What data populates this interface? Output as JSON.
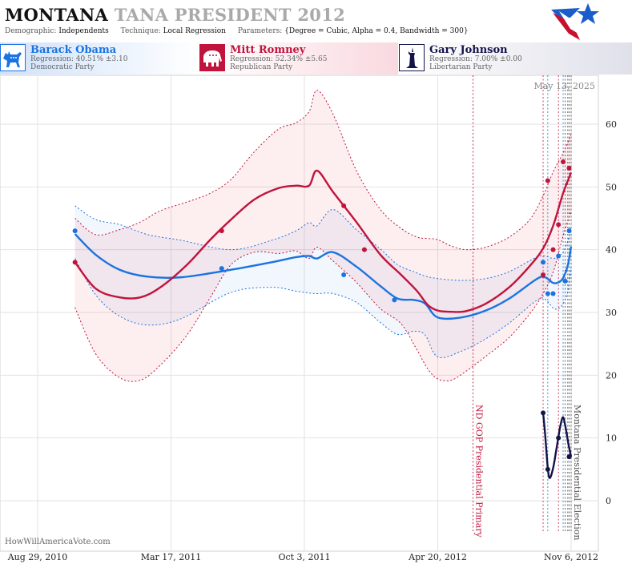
{
  "header": {
    "title_state": "MONTANA",
    "title_rest": "TANA PRESIDENT 2012",
    "demographic_label": "Demographic:",
    "demographic_value": "Independents",
    "technique_label": "Technique:",
    "technique_value": "Local Regression",
    "parameters_label": "Parameters:",
    "parameters_value": "{Degree = Cubic, Alpha = 0.4, Bandwidth = 300}",
    "logo_icon": "star-flag-logo-icon"
  },
  "candidates": [
    {
      "name": "Barack Obama",
      "regression": "Regression: 40.51% ±3.10",
      "party": "Democratic Party",
      "color": "#1a73e0",
      "icon": "donkey-icon"
    },
    {
      "name": "Mitt Romney",
      "regression": "Regression: 52.34% ±5.65",
      "party": "Republican Party",
      "color": "#c0143c",
      "icon": "elephant-icon"
    },
    {
      "name": "Gary Johnson",
      "regression": "Regression: 7.00% ±0.00",
      "party": "Libertarian Party",
      "color": "#14144a",
      "icon": "statue-of-liberty-icon"
    }
  ],
  "chart_data": {
    "type": "line",
    "date_stamp": "May 13, 2025",
    "watermark": "HowWillAmericaVote.com",
    "x_ticks": [
      "Aug 29, 2010",
      "Mar 17, 2011",
      "Oct 3, 2011",
      "Apr 20, 2012",
      "Nov 6, 2012"
    ],
    "y_ticks": [
      0,
      10,
      20,
      30,
      40,
      50,
      60
    ],
    "ylim": [
      -8,
      66
    ],
    "grid": true,
    "annotations": [
      {
        "label": "ND GOP Presidential Primary",
        "date": "2012-06-12",
        "color": "#c0143c"
      },
      {
        "label": "Montana Presidential Election",
        "date": "2012-11-06",
        "color": "#555555"
      }
    ],
    "poll_date_lines": [
      "2012-09-25",
      "2012-10-02",
      "2012-10-18",
      "2012-10-25",
      "2012-10-28",
      "2012-11-01",
      "2012-11-03"
    ],
    "series": [
      {
        "name": "Barack Obama",
        "color": "#1a73e0",
        "trend_x": [
          "2010-10-24",
          "2010-11-24",
          "2010-12-30",
          "2011-02-10",
          "2011-04-01",
          "2011-06-15",
          "2011-08-15",
          "2011-09-20",
          "2011-10-10",
          "2011-10-22",
          "2011-11-15",
          "2011-12-20",
          "2012-01-25",
          "2012-02-20",
          "2012-03-15",
          "2012-04-01",
          "2012-04-20",
          "2012-05-25",
          "2012-07-01",
          "2012-08-05",
          "2012-09-15",
          "2012-09-28",
          "2012-10-10",
          "2012-10-18",
          "2012-10-25",
          "2012-11-01",
          "2012-11-06"
        ],
        "trend_y": [
          42.5,
          39.2,
          36.8,
          35.7,
          35.6,
          36.8,
          38.0,
          38.8,
          39.0,
          38.6,
          39.6,
          37.3,
          34.2,
          32.2,
          32.0,
          31.4,
          29.2,
          29.2,
          30.3,
          32.2,
          35.3,
          35.6,
          34.7,
          34.8,
          35.5,
          37.5,
          40.5
        ],
        "upper_y": [
          47.0,
          44.8,
          44.0,
          42.4,
          41.5,
          40.0,
          41.5,
          43.0,
          44.3,
          43.8,
          46.4,
          43.2,
          40.1,
          37.6,
          36.5,
          35.8,
          35.4,
          35.1,
          35.4,
          36.5,
          38.8,
          39.0,
          38.6,
          39.0,
          39.6,
          41.4,
          43.6
        ],
        "lower_y": [
          38.6,
          32.8,
          29.4,
          28.0,
          29.0,
          33.2,
          34.0,
          33.4,
          33.1,
          33.0,
          33.0,
          31.6,
          28.4,
          26.5,
          27.0,
          26.4,
          22.9,
          23.8,
          25.8,
          28.3,
          31.9,
          32.1,
          30.7,
          30.6,
          31.4,
          33.3,
          37.3
        ],
        "poll_x": [
          "2010-10-24",
          "2011-06-01",
          "2011-12-01",
          "2012-02-15",
          "2012-09-25",
          "2012-10-02",
          "2012-10-10",
          "2012-10-18",
          "2012-10-28",
          "2012-11-03"
        ],
        "poll_y": [
          43,
          37,
          36,
          32,
          38,
          33,
          33,
          39,
          35,
          43
        ]
      },
      {
        "name": "Mitt Romney",
        "color": "#c0143c",
        "trend_x": [
          "2010-10-24",
          "2010-11-24",
          "2010-12-30",
          "2011-01-30",
          "2011-03-01",
          "2011-04-10",
          "2011-05-15",
          "2011-06-15",
          "2011-07-20",
          "2011-08-25",
          "2011-09-20",
          "2011-10-10",
          "2011-10-22",
          "2011-11-15",
          "2011-12-20",
          "2012-01-25",
          "2012-02-25",
          "2012-03-20",
          "2012-04-05",
          "2012-04-20",
          "2012-05-10",
          "2012-06-01",
          "2012-07-01",
          "2012-08-05",
          "2012-09-05",
          "2012-09-25",
          "2012-10-10",
          "2012-10-25",
          "2012-11-06"
        ],
        "trend_y": [
          38.0,
          33.8,
          32.4,
          32.4,
          34.0,
          37.6,
          41.6,
          44.8,
          48.0,
          49.8,
          50.2,
          50.2,
          52.6,
          49.2,
          44.4,
          39.2,
          36.0,
          33.4,
          31.2,
          30.3,
          30.1,
          30.2,
          31.4,
          34.0,
          37.4,
          40.2,
          43.8,
          49.0,
          52.3
        ],
        "upper_y": [
          45.0,
          42.4,
          43.2,
          44.4,
          46.2,
          47.6,
          49.0,
          51.2,
          55.6,
          59.2,
          60.2,
          62.0,
          65.4,
          61.6,
          52.6,
          46.4,
          43.4,
          42.0,
          41.8,
          41.6,
          40.6,
          40.0,
          40.4,
          42.0,
          44.8,
          48.6,
          52.4,
          55.4,
          58.4
        ],
        "lower_y": [
          30.8,
          23.4,
          19.6,
          19.2,
          21.6,
          26.4,
          32.4,
          37.6,
          39.6,
          39.4,
          39.8,
          38.6,
          40.4,
          38.2,
          34.8,
          30.6,
          28.2,
          24.0,
          21.0,
          19.4,
          19.2,
          20.6,
          23.0,
          26.0,
          29.8,
          33.0,
          36.4,
          42.2,
          46.2
        ],
        "poll_x": [
          "2010-10-24",
          "2011-06-01",
          "2011-12-01",
          "2012-01-01",
          "2012-09-25",
          "2012-10-02",
          "2012-10-10",
          "2012-10-18",
          "2012-10-25",
          "2012-11-03"
        ],
        "poll_y": [
          38,
          43,
          47,
          40,
          36,
          51,
          40,
          44,
          54,
          53
        ]
      },
      {
        "name": "Gary Johnson",
        "color": "#14144a",
        "trend_x": [
          "2012-09-25",
          "2012-09-28",
          "2012-10-02",
          "2012-10-05",
          "2012-10-10",
          "2012-10-14",
          "2012-10-18",
          "2012-10-21",
          "2012-10-25",
          "2012-10-29",
          "2012-11-02",
          "2012-11-06"
        ],
        "trend_y": [
          14.0,
          10.6,
          5.2,
          3.6,
          5.2,
          7.6,
          10.2,
          12.0,
          13.3,
          11.5,
          9.0,
          7.0
        ],
        "poll_x": [
          "2012-09-25",
          "2012-10-02",
          "2012-10-18",
          "2012-11-03"
        ],
        "poll_y": [
          14,
          5,
          10,
          7
        ]
      }
    ]
  }
}
